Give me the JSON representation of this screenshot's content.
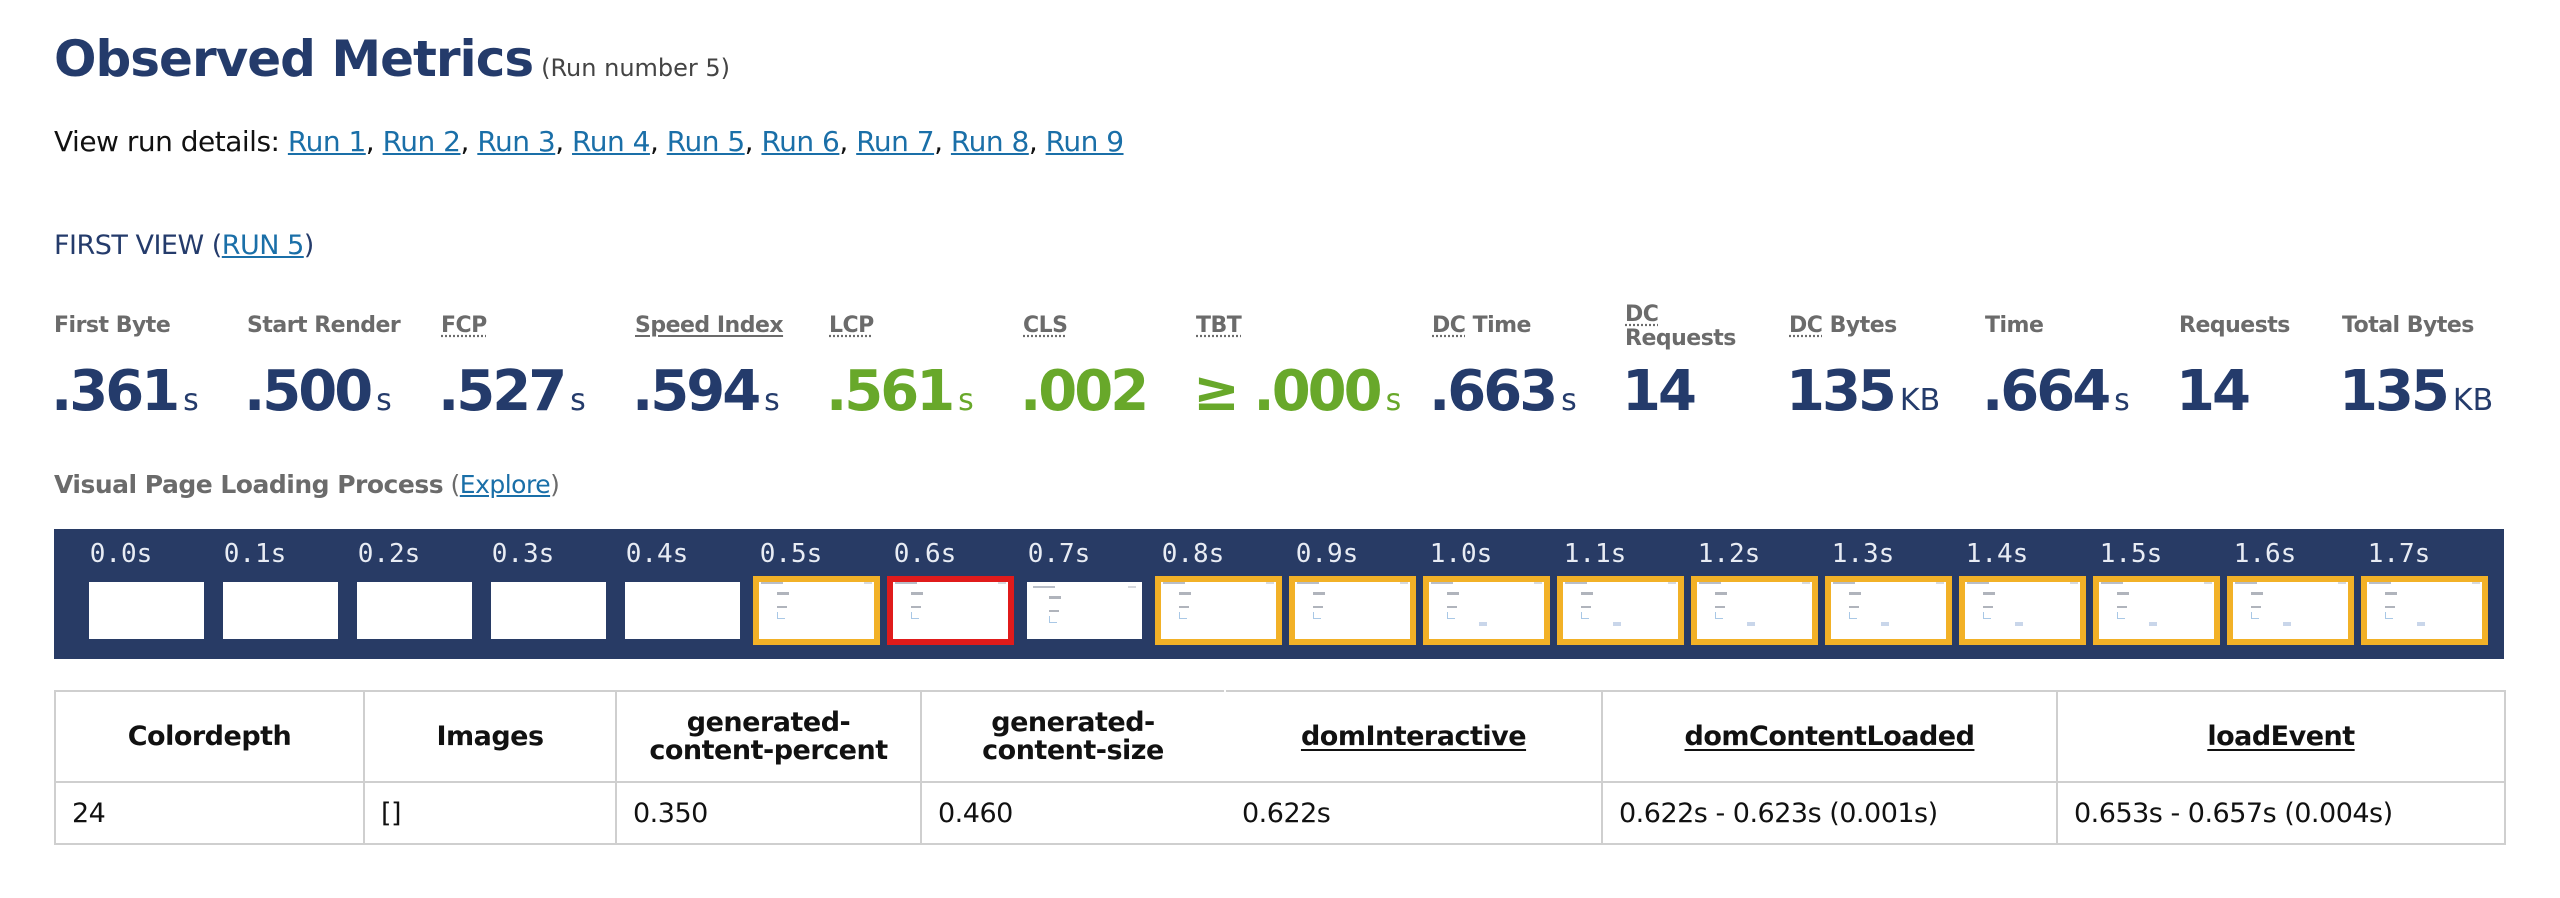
{
  "header": {
    "title": "Observed Metrics",
    "subtitle": "(Run number 5)"
  },
  "runs": {
    "label": "View run details: ",
    "links": [
      "Run 1",
      "Run 2",
      "Run 3",
      "Run 4",
      "Run 5",
      "Run 6",
      "Run 7",
      "Run 8",
      "Run 9"
    ],
    "separator": ", "
  },
  "first_view": {
    "prefix": "FIRST VIEW (",
    "link": "RUN 5",
    "suffix": ")"
  },
  "metrics": [
    {
      "label": "First Byte",
      "value": ".361",
      "unit": "s",
      "status": "normal"
    },
    {
      "label": "Start Render",
      "value": ".500",
      "unit": "s",
      "status": "normal"
    },
    {
      "label": "FCP",
      "value": ".527",
      "unit": "s",
      "status": "normal"
    },
    {
      "label": "Speed Index",
      "value": ".594",
      "unit": "s",
      "status": "normal"
    },
    {
      "label": "LCP",
      "value": ".561",
      "unit": "s",
      "status": "good"
    },
    {
      "label": "CLS",
      "value": ".002",
      "unit": "",
      "status": "good"
    },
    {
      "label": "TBT",
      "value": "≥ .000",
      "unit": "s",
      "status": "good"
    },
    {
      "label_abbr": "DC",
      "label_rest": " Time",
      "value": ".663",
      "unit": "s",
      "status": "normal"
    },
    {
      "label_abbr": "DC",
      "label_rest": "Requests",
      "value": "14",
      "unit": "",
      "status": "normal"
    },
    {
      "label_abbr": "DC",
      "label_rest": " Bytes",
      "value": "135",
      "unit": "KB",
      "status": "normal"
    },
    {
      "label": "Time",
      "value": ".664",
      "unit": "s",
      "status": "normal"
    },
    {
      "label": "Requests",
      "value": "14",
      "unit": "",
      "status": "normal"
    },
    {
      "label": "Total Bytes",
      "value": "135",
      "unit": "KB",
      "status": "normal"
    }
  ],
  "visual_loading": {
    "title": "Visual Page Loading Process",
    "open_paren": " (",
    "explore_link": "Explore",
    "close_paren": ")"
  },
  "filmstrip": {
    "frames": [
      {
        "time": "0.0s",
        "state": "blank"
      },
      {
        "time": "0.1s",
        "state": "blank"
      },
      {
        "time": "0.2s",
        "state": "blank"
      },
      {
        "time": "0.3s",
        "state": "blank"
      },
      {
        "time": "0.4s",
        "state": "blank"
      },
      {
        "time": "0.5s",
        "state": "changed"
      },
      {
        "time": "0.6s",
        "state": "lcp"
      },
      {
        "time": "0.7s",
        "state": "unchanged"
      },
      {
        "time": "0.8s",
        "state": "changed"
      },
      {
        "time": "0.9s",
        "state": "changed"
      },
      {
        "time": "1.0s",
        "state": "changed"
      },
      {
        "time": "1.1s",
        "state": "changed"
      },
      {
        "time": "1.2s",
        "state": "changed"
      },
      {
        "time": "1.3s",
        "state": "changed"
      },
      {
        "time": "1.4s",
        "state": "changed"
      },
      {
        "time": "1.5s",
        "state": "changed"
      },
      {
        "time": "1.6s",
        "state": "changed"
      },
      {
        "time": "1.7s",
        "state": "changed"
      }
    ],
    "colors": {
      "background": "#283b65",
      "changed": "#f2b127",
      "lcp": "#e01b1b"
    }
  },
  "table": {
    "headers": [
      "Colordepth",
      "Images",
      "generated-content-percent",
      "generated-content-size",
      "domInteractive",
      "domContentLoaded",
      "loadEvent"
    ],
    "header_lines": [
      [
        "Colordepth"
      ],
      [
        "Images"
      ],
      [
        "generated-",
        "content-percent"
      ],
      [
        "generated-",
        "content-size"
      ],
      [
        "domInteractive"
      ],
      [
        "domContentLoaded"
      ],
      [
        "loadEvent"
      ]
    ],
    "rows": [
      [
        "24",
        "[]",
        "0.350",
        "0.460",
        "0.622s",
        "0.622s - 0.623s (0.001s)",
        "0.653s - 0.657s (0.004s)"
      ]
    ]
  },
  "colors": {
    "heading": "#243b6b",
    "good": "#68a82a",
    "link": "#1a6fa8",
    "label": "#6b6b6b"
  }
}
